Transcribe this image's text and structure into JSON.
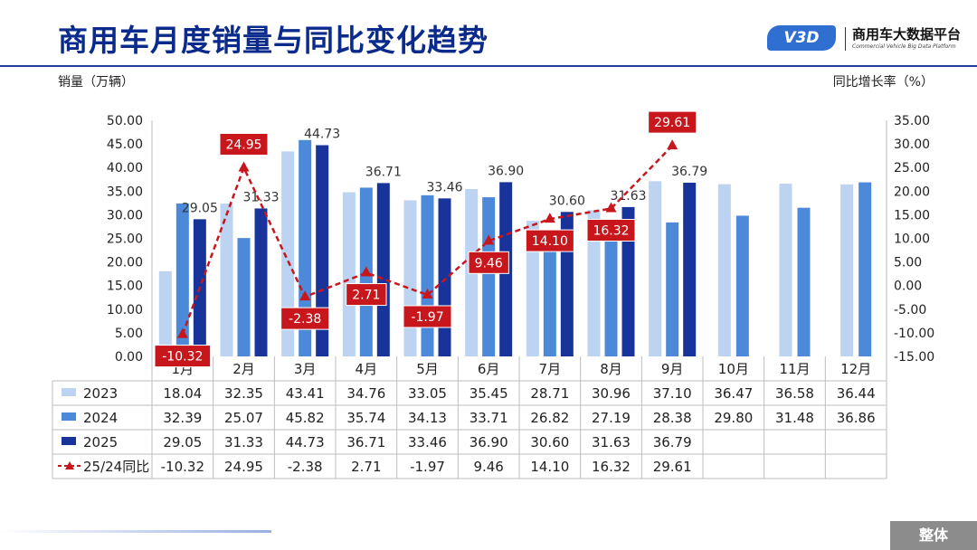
{
  "header": {
    "title": "商用车月度销量与同比变化趋势",
    "logo_badge": "V3D",
    "logo_cn": "商用车大数据平台",
    "logo_en": "Commercial Vehicle Big Data Platform"
  },
  "footer": {
    "tag": "整体"
  },
  "colors": {
    "y2023": "#bcd3f1",
    "y2024": "#4c8ad9",
    "y2025": "#18349b",
    "yoy": "#c8161d",
    "title": "#0a2a8c"
  },
  "chart_data": {
    "type": "bar",
    "ylabel": "销量（万辆）",
    "y2label": "同比增长率（%）",
    "ylim": [
      0,
      50
    ],
    "y2lim": [
      -15,
      35
    ],
    "yticks": [
      "0.00",
      "5.00",
      "10.00",
      "15.00",
      "20.00",
      "25.00",
      "30.00",
      "35.00",
      "40.00",
      "45.00",
      "50.00"
    ],
    "y2ticks": [
      "-15.00",
      "-10.00",
      "-5.00",
      "0.00",
      "5.00",
      "10.00",
      "15.00",
      "20.00",
      "25.00",
      "30.00",
      "35.00"
    ],
    "categories": [
      "1月",
      "2月",
      "3月",
      "4月",
      "5月",
      "6月",
      "7月",
      "8月",
      "9月",
      "10月",
      "11月",
      "12月"
    ],
    "series": [
      {
        "name": "2023",
        "type": "bar",
        "values": [
          18.04,
          32.35,
          43.41,
          34.76,
          33.05,
          35.45,
          28.71,
          30.96,
          37.1,
          36.47,
          36.58,
          36.44
        ]
      },
      {
        "name": "2024",
        "type": "bar",
        "values": [
          32.39,
          25.07,
          45.82,
          35.74,
          34.13,
          33.71,
          26.82,
          27.19,
          28.38,
          29.8,
          31.48,
          36.86
        ]
      },
      {
        "name": "2025",
        "type": "bar",
        "values": [
          29.05,
          31.33,
          44.73,
          36.71,
          33.46,
          36.9,
          30.6,
          31.63,
          36.79,
          null,
          null,
          null
        ]
      },
      {
        "name": "25/24同比",
        "type": "line",
        "axis": "right",
        "values": [
          -10.32,
          24.95,
          -2.38,
          2.71,
          -1.97,
          9.46,
          14.1,
          16.32,
          29.61,
          null,
          null,
          null
        ]
      }
    ],
    "bar_labels_2025": [
      "29.05",
      "31.33",
      "44.73",
      "36.71",
      "33.46",
      "36.90",
      "30.60",
      "31.63",
      "36.79"
    ],
    "yoy_labels": [
      "-10.32",
      "24.95",
      "-2.38",
      "2.71",
      "-1.97",
      "9.46",
      "14.10",
      "16.32",
      "29.61"
    ],
    "table": {
      "rows": [
        {
          "label": "2023",
          "cells": [
            "18.04",
            "32.35",
            "43.41",
            "34.76",
            "33.05",
            "35.45",
            "28.71",
            "30.96",
            "37.10",
            "36.47",
            "36.58",
            "36.44"
          ]
        },
        {
          "label": "2024",
          "cells": [
            "32.39",
            "25.07",
            "45.82",
            "35.74",
            "34.13",
            "33.71",
            "26.82",
            "27.19",
            "28.38",
            "29.80",
            "31.48",
            "36.86"
          ]
        },
        {
          "label": "2025",
          "cells": [
            "29.05",
            "31.33",
            "44.73",
            "36.71",
            "33.46",
            "36.90",
            "30.60",
            "31.63",
            "36.79",
            "",
            "",
            ""
          ]
        },
        {
          "label": "25/24同比",
          "cells": [
            "-10.32",
            "24.95",
            "-2.38",
            "2.71",
            "-1.97",
            "9.46",
            "14.10",
            "16.32",
            "29.61",
            "",
            "",
            ""
          ]
        }
      ]
    }
  }
}
